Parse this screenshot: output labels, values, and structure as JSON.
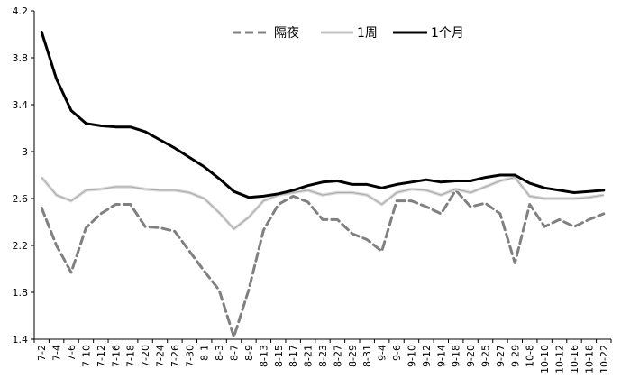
{
  "chart_data": {
    "type": "line",
    "title": "",
    "xlabel": "",
    "ylabel": "",
    "ylim": [
      1.4,
      4.2
    ],
    "yticks": [
      1.4,
      1.8,
      2.2,
      2.6,
      3.0,
      3.4,
      3.8,
      4.2
    ],
    "ytick_labels": [
      "1.4",
      "1.8",
      "2.2",
      "2.6",
      "3",
      "3.4",
      "3.8",
      "4.2"
    ],
    "legend_position": "top-center",
    "categories": [
      "7-2",
      "7-4",
      "7-6",
      "7-10",
      "7-12",
      "7-16",
      "7-18",
      "7-20",
      "7-24",
      "7-26",
      "7-30",
      "8-1",
      "8-3",
      "8-7",
      "8-9",
      "8-13",
      "8-15",
      "8-17",
      "8-21",
      "8-23",
      "8-27",
      "8-29",
      "8-31",
      "9-4",
      "9-6",
      "9-10",
      "9-12",
      "9-14",
      "9-18",
      "9-20",
      "9-25",
      "9-27",
      "9-29",
      "10-8",
      "10-10",
      "10-12",
      "10-16",
      "10-18",
      "10-22"
    ],
    "series": [
      {
        "name": "隔夜",
        "color": "#808080",
        "style": "dashed",
        "values": [
          2.52,
          2.2,
          1.97,
          2.35,
          2.47,
          2.55,
          2.55,
          2.36,
          2.35,
          2.32,
          2.15,
          1.98,
          1.82,
          1.42,
          1.82,
          2.33,
          2.55,
          2.62,
          2.57,
          2.42,
          2.42,
          2.3,
          2.25,
          2.15,
          2.58,
          2.58,
          2.53,
          2.47,
          2.67,
          2.53,
          2.56,
          2.47,
          2.05,
          2.55,
          2.36,
          2.42,
          2.36,
          2.42,
          2.47
        ]
      },
      {
        "name": "1周",
        "color": "#a8a8a8",
        "style": "solid-thin",
        "values": [
          2.78,
          2.63,
          2.58,
          2.67,
          2.68,
          2.7,
          2.7,
          2.68,
          2.67,
          2.67,
          2.65,
          2.6,
          2.48,
          2.34,
          2.44,
          2.58,
          2.63,
          2.65,
          2.67,
          2.63,
          2.65,
          2.65,
          2.63,
          2.55,
          2.65,
          2.68,
          2.67,
          2.63,
          2.68,
          2.65,
          2.7,
          2.75,
          2.78,
          2.62,
          2.6,
          2.6,
          2.6,
          2.61,
          2.63
        ]
      },
      {
        "name": "1个月",
        "color": "#000000",
        "style": "solid-thick",
        "values": [
          4.02,
          3.62,
          3.35,
          3.24,
          3.22,
          3.21,
          3.21,
          3.17,
          3.1,
          3.03,
          2.95,
          2.87,
          2.77,
          2.66,
          2.61,
          2.62,
          2.64,
          2.67,
          2.71,
          2.74,
          2.75,
          2.72,
          2.72,
          2.69,
          2.72,
          2.74,
          2.76,
          2.74,
          2.75,
          2.75,
          2.78,
          2.8,
          2.8,
          2.73,
          2.69,
          2.67,
          2.65,
          2.66,
          2.67
        ]
      }
    ]
  }
}
